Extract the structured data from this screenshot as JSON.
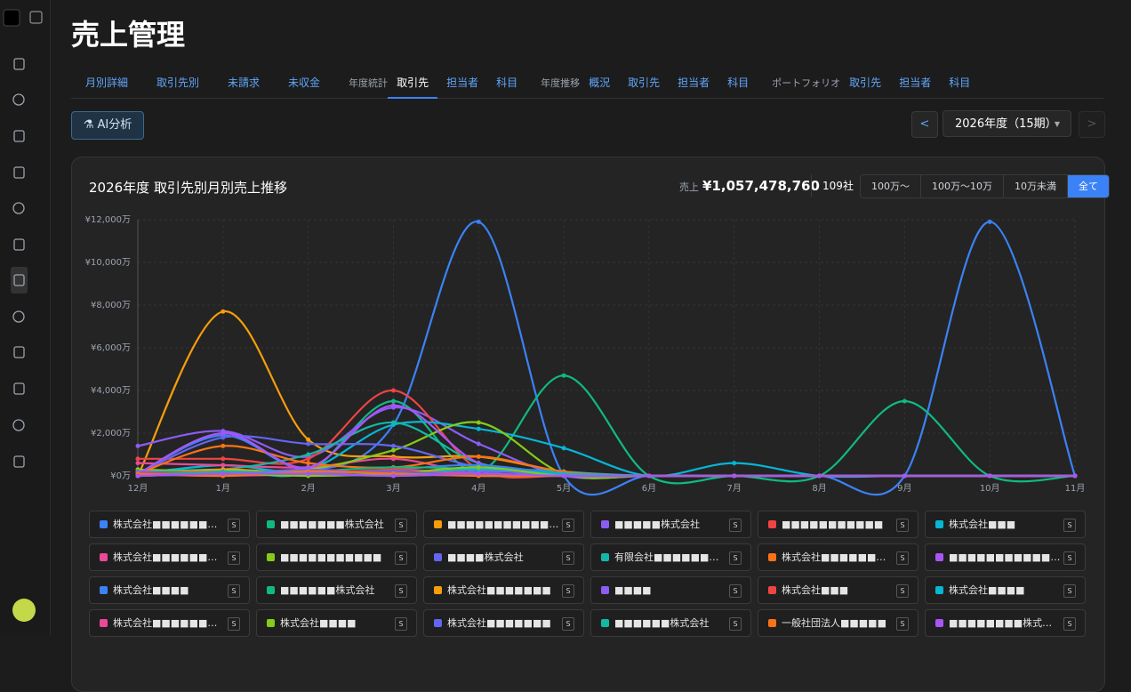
{
  "header": {
    "title": "売上管理"
  },
  "tabs": {
    "main": [
      "月別詳細",
      "取引先別",
      "未請求",
      "未収金"
    ],
    "groups": [
      {
        "label": "年度統計",
        "items": [
          "取引先",
          "担当者",
          "科目"
        ]
      },
      {
        "label": "年度推移",
        "items": [
          "概況",
          "取引先",
          "担当者",
          "科目"
        ]
      },
      {
        "label": "ポートフォリオ",
        "items": [
          "取引先",
          "担当者",
          "科目"
        ]
      }
    ],
    "active_group": 0,
    "active_item": 0
  },
  "toolbar": {
    "ai_button": "AI分析",
    "prev": "<",
    "year": "2026年度（15期）",
    "next": ">"
  },
  "card": {
    "total_label": "売上",
    "total": "¥1,057,478,760",
    "count": "109社",
    "filters": [
      "100万〜",
      "100万〜10万",
      "10万未満",
      "全て"
    ],
    "active_filter": 3,
    "badge": "S"
  },
  "chart_data": {
    "type": "line",
    "title": "2026年度 取引先別月別売上推移",
    "categories": [
      "12月",
      "1月",
      "2月",
      "3月",
      "4月",
      "5月",
      "6月",
      "7月",
      "8月",
      "9月",
      "10月",
      "11月"
    ],
    "ylim": [
      0,
      12000
    ],
    "yticks": [
      {
        "value": 0,
        "label": "¥0万"
      },
      {
        "value": 2000,
        "label": "¥2,000万"
      },
      {
        "value": 4000,
        "label": "¥4,000万"
      },
      {
        "value": 6000,
        "label": "¥6,000万"
      },
      {
        "value": 8000,
        "label": "¥8,000万"
      },
      {
        "value": 10000,
        "label": "¥10,000万"
      },
      {
        "value": 12000,
        "label": "¥12,000万"
      }
    ],
    "grid": true,
    "series": [
      {
        "name": "株式会社■■■■■■■■■■",
        "color": "#3b82f6",
        "values": [
          100,
          1900,
          300,
          2400,
          11900,
          0,
          0,
          0,
          0,
          0,
          11900,
          0
        ]
      },
      {
        "name": "■■■■■■■株式会社",
        "color": "#10b981",
        "values": [
          200,
          300,
          200,
          3500,
          200,
          4700,
          0,
          0,
          0,
          3500,
          0,
          0
        ]
      },
      {
        "name": "■■■■■■■■■■■株式会社",
        "color": "#f59e0b",
        "values": [
          0,
          7700,
          1700,
          900,
          900,
          200,
          0,
          0,
          0,
          0,
          0,
          0
        ]
      },
      {
        "name": "■■■■■株式会社",
        "color": "#8b5cf6",
        "values": [
          1400,
          2100,
          900,
          3200,
          1500,
          0,
          0,
          0,
          0,
          0,
          0,
          0
        ]
      },
      {
        "name": "■■■■■■■■■■■",
        "color": "#ef4444",
        "values": [
          800,
          800,
          800,
          4000,
          300,
          0,
          0,
          0,
          0,
          0,
          0,
          0
        ]
      },
      {
        "name": "株式会社■■■",
        "color": "#06b6d4",
        "values": [
          100,
          500,
          300,
          2400,
          2200,
          1300,
          0,
          600,
          0,
          0,
          0,
          0
        ]
      },
      {
        "name": "株式会社■■■■■■■■■",
        "color": "#ec4899",
        "values": [
          600,
          500,
          400,
          800,
          100,
          0,
          0,
          0,
          0,
          0,
          0,
          0
        ]
      },
      {
        "name": "■■■■■■■■■■■",
        "color": "#84cc16",
        "values": [
          300,
          200,
          300,
          1200,
          2500,
          100,
          0,
          0,
          0,
          0,
          0,
          0
        ]
      },
      {
        "name": "■■■■株式会社",
        "color": "#6366f1",
        "values": [
          100,
          1800,
          1500,
          1400,
          400,
          0,
          0,
          0,
          0,
          0,
          0,
          0
        ]
      },
      {
        "name": "有限会社■■■■■■■■■■",
        "color": "#14b8a6",
        "values": [
          200,
          300,
          1000,
          2500,
          600,
          200,
          0,
          0,
          0,
          0,
          0,
          0
        ]
      },
      {
        "name": "株式会社■■■■■■■■■■",
        "color": "#f97316",
        "values": [
          100,
          1400,
          600,
          400,
          900,
          200,
          0,
          0,
          0,
          0,
          0,
          0
        ]
      },
      {
        "name": "■■■■■■■■■■■■■■",
        "color": "#a855f7",
        "values": [
          100,
          2000,
          400,
          3300,
          600,
          0,
          0,
          0,
          0,
          0,
          0,
          0
        ]
      },
      {
        "name": "株式会社■■■■",
        "color": "#3b82f6",
        "values": [
          0,
          200,
          100,
          300,
          500,
          100,
          0,
          0,
          0,
          0,
          0,
          0
        ]
      },
      {
        "name": "■■■■■■株式会社",
        "color": "#10b981",
        "values": [
          100,
          100,
          200,
          400,
          300,
          0,
          0,
          0,
          0,
          0,
          0,
          0
        ]
      },
      {
        "name": "株式会社■■■■■■■",
        "color": "#f59e0b",
        "values": [
          0,
          300,
          100,
          200,
          100,
          0,
          0,
          0,
          0,
          0,
          0,
          0
        ]
      },
      {
        "name": "■■■■",
        "color": "#8b5cf6",
        "values": [
          200,
          100,
          300,
          100,
          200,
          100,
          0,
          0,
          0,
          0,
          0,
          0
        ]
      },
      {
        "name": "株式会社■■■",
        "color": "#ef4444",
        "values": [
          100,
          200,
          100,
          300,
          100,
          0,
          0,
          0,
          0,
          0,
          0,
          0
        ]
      },
      {
        "name": "株式会社■■■■",
        "color": "#06b6d4",
        "values": [
          0,
          100,
          200,
          100,
          300,
          100,
          0,
          0,
          0,
          0,
          0,
          0
        ]
      },
      {
        "name": "株式会社■■■■■■■■■■■",
        "color": "#ec4899",
        "values": [
          100,
          0,
          100,
          200,
          100,
          0,
          0,
          0,
          0,
          0,
          0,
          0
        ]
      },
      {
        "name": "株式会社■■■■",
        "color": "#84cc16",
        "values": [
          0,
          100,
          0,
          100,
          400,
          0,
          0,
          0,
          0,
          0,
          0,
          0
        ]
      },
      {
        "name": "株式会社■■■■■■■",
        "color": "#6366f1",
        "values": [
          100,
          100,
          100,
          200,
          0,
          0,
          0,
          0,
          0,
          0,
          0,
          0
        ]
      },
      {
        "name": "■■■■■■株式会社",
        "color": "#14b8a6",
        "values": [
          0,
          200,
          100,
          0,
          100,
          0,
          0,
          0,
          0,
          0,
          0,
          0
        ]
      },
      {
        "name": "一般社団法人■■■■■",
        "color": "#f97316",
        "values": [
          100,
          0,
          200,
          100,
          0,
          0,
          0,
          0,
          0,
          0,
          0,
          0
        ]
      },
      {
        "name": "■■■■■■■■株式会社",
        "color": "#a855f7",
        "values": [
          0,
          100,
          100,
          0,
          100,
          0,
          0,
          0,
          0,
          0,
          0,
          0
        ]
      }
    ]
  }
}
